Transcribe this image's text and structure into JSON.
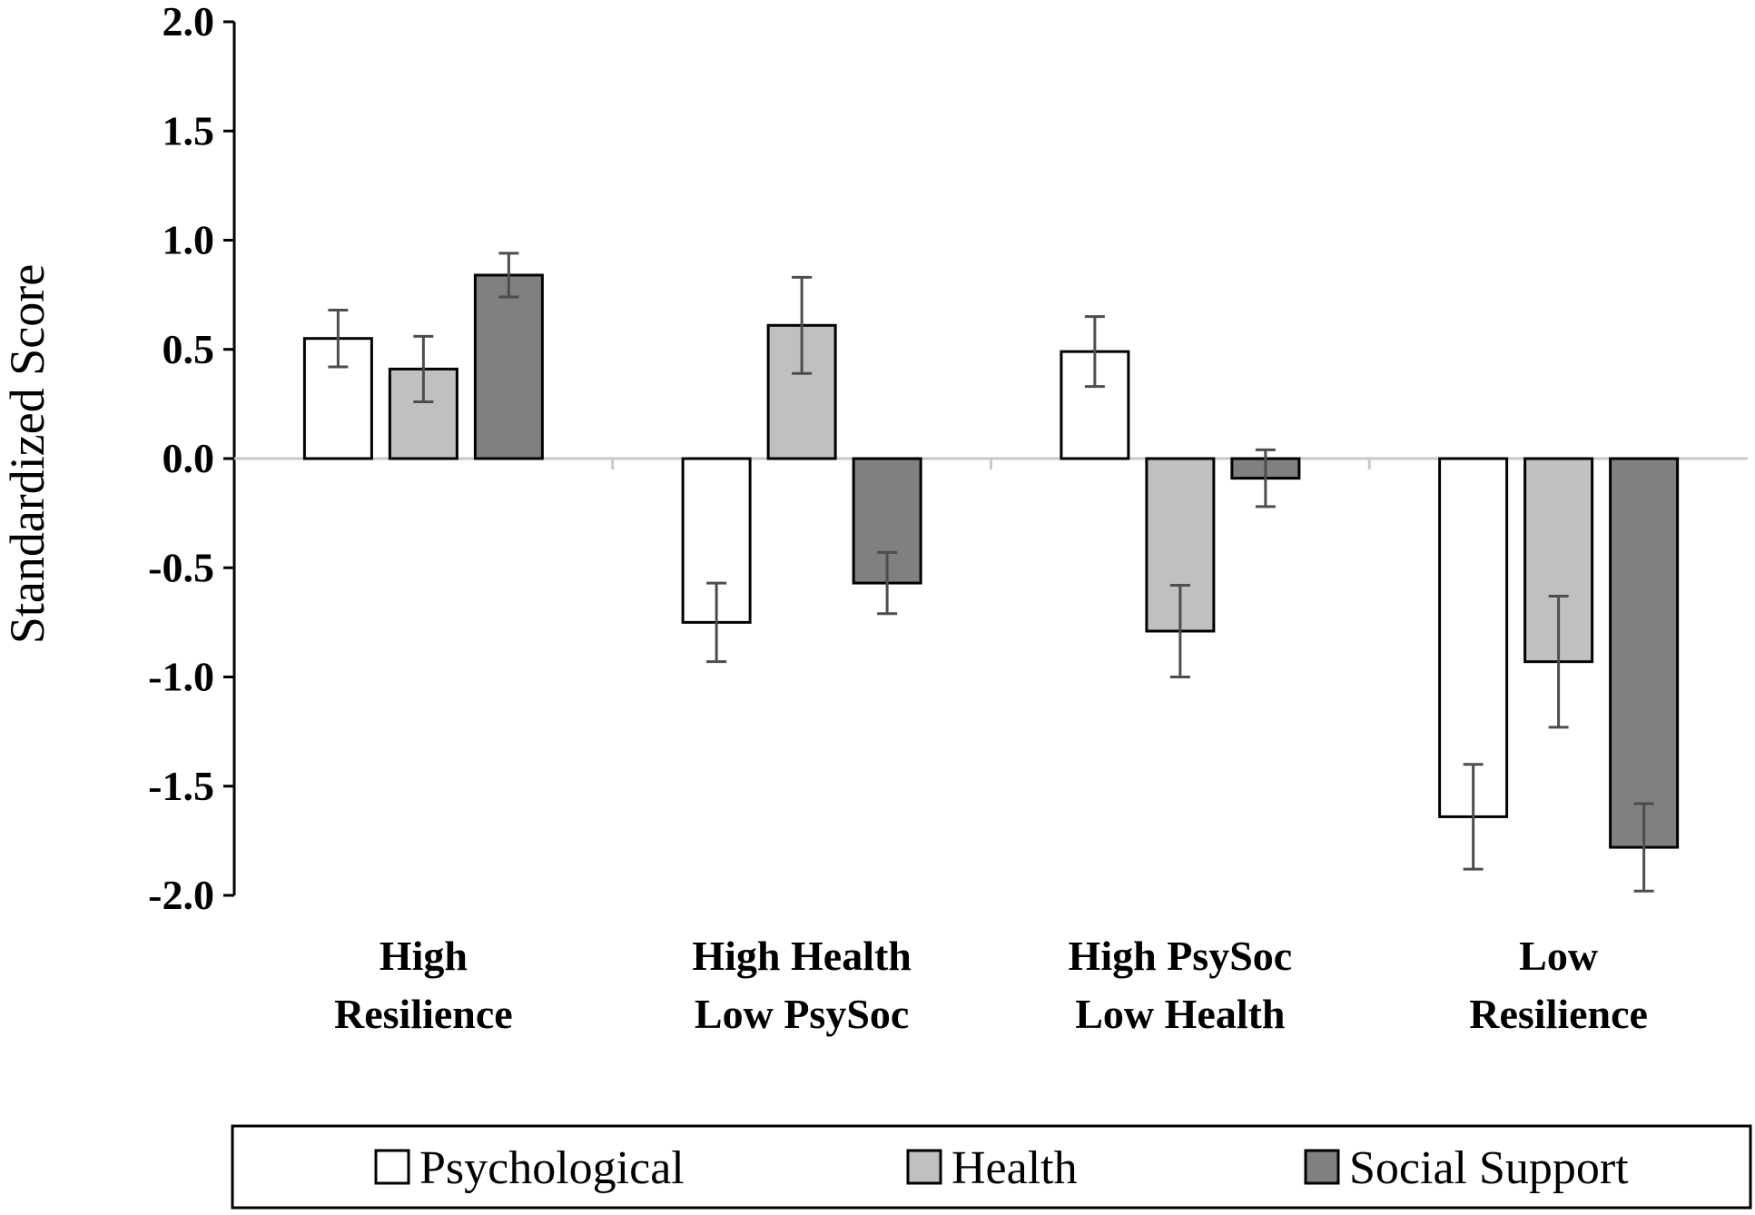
{
  "chart_data": {
    "type": "bar",
    "title": "",
    "xlabel": "",
    "ylabel": "Standardized Score",
    "ylim": [
      -2.0,
      2.0
    ],
    "yticks": [
      "2.0",
      "1.5",
      "1.0",
      "0.5",
      "0.0",
      "-0.5",
      "-1.0",
      "-1.5",
      "-2.0"
    ],
    "ytick_values": [
      2.0,
      1.5,
      1.0,
      0.5,
      0.0,
      -0.5,
      -1.0,
      -1.5,
      -2.0
    ],
    "categories": [
      {
        "line1": "High",
        "line2": "Resilience"
      },
      {
        "line1": "High Health",
        "line2": "Low PsySoc"
      },
      {
        "line1": "High PsySoc",
        "line2": "Low Health"
      },
      {
        "line1": "Low",
        "line2": "Resilience"
      }
    ],
    "series": [
      {
        "name": "Psychological",
        "color": "#ffffff",
        "values": [
          0.55,
          -0.75,
          0.49,
          -1.64
        ],
        "errors": [
          0.13,
          0.18,
          0.16,
          0.24
        ]
      },
      {
        "name": "Health",
        "color": "#c0c0c0",
        "values": [
          0.41,
          0.61,
          -0.79,
          -0.93
        ],
        "errors": [
          0.15,
          0.22,
          0.21,
          0.3
        ]
      },
      {
        "name": "Social Support",
        "color": "#808080",
        "values": [
          0.84,
          -0.57,
          -0.09,
          -1.78
        ],
        "errors": [
          0.1,
          0.14,
          0.13,
          0.2
        ]
      }
    ],
    "grid": false,
    "legend_position": "bottom"
  }
}
